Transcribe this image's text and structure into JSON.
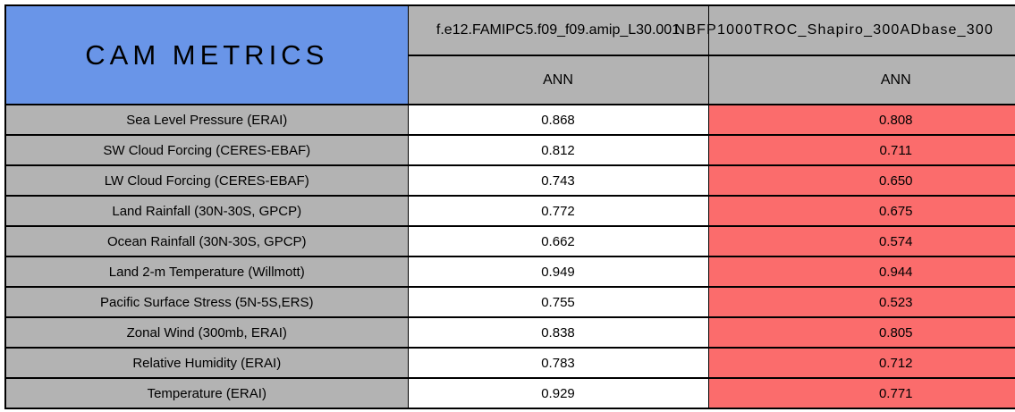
{
  "chart_data": {
    "type": "table",
    "title": "CAM METRICS",
    "columns": [
      {
        "model": "f.e12.FAMIPC5.f09_f09.amip_L30.001",
        "season": "ANN",
        "cell_color": "#FFFFFF"
      },
      {
        "model": "NBFP1000TROC_Shapiro_300ADbase_300",
        "season": "ANN",
        "cell_color": "#FB6C6C"
      }
    ],
    "rows": [
      {
        "metric": "Sea Level Pressure (ERAI)",
        "values": [
          "0.868",
          "0.808"
        ]
      },
      {
        "metric": "SW Cloud Forcing (CERES-EBAF)",
        "values": [
          "0.812",
          "0.711"
        ]
      },
      {
        "metric": "LW Cloud Forcing (CERES-EBAF)",
        "values": [
          "0.743",
          "0.650"
        ]
      },
      {
        "metric": "Land Rainfall (30N-30S, GPCP)",
        "values": [
          "0.772",
          "0.675"
        ]
      },
      {
        "metric": "Ocean Rainfall (30N-30S, GPCP)",
        "values": [
          "0.662",
          "0.574"
        ]
      },
      {
        "metric": "Land 2-m Temperature (Willmott)",
        "values": [
          "0.949",
          "0.944"
        ]
      },
      {
        "metric": "Pacific Surface Stress (5N-5S,ERS)",
        "values": [
          "0.755",
          "0.523"
        ]
      },
      {
        "metric": "Zonal Wind (300mb, ERAI)",
        "values": [
          "0.838",
          "0.805"
        ]
      },
      {
        "metric": "Relative Humidity (ERAI)",
        "values": [
          "0.783",
          "0.712"
        ]
      },
      {
        "metric": "Temperature (ERAI)",
        "values": [
          "0.929",
          "0.771"
        ]
      }
    ],
    "layout": {
      "legend": "none",
      "grid": "all-cell-borders",
      "title_cell_color": "#6995E8",
      "label_cell_color": "#B3B3B3",
      "right_edge_clipped": true
    }
  },
  "colors": {
    "header_blue": "#6995E8",
    "cell_gray": "#B3B3B3",
    "cell_red": "#FB6C6C",
    "cell_white": "#FFFFFF",
    "border_black": "#000000"
  }
}
